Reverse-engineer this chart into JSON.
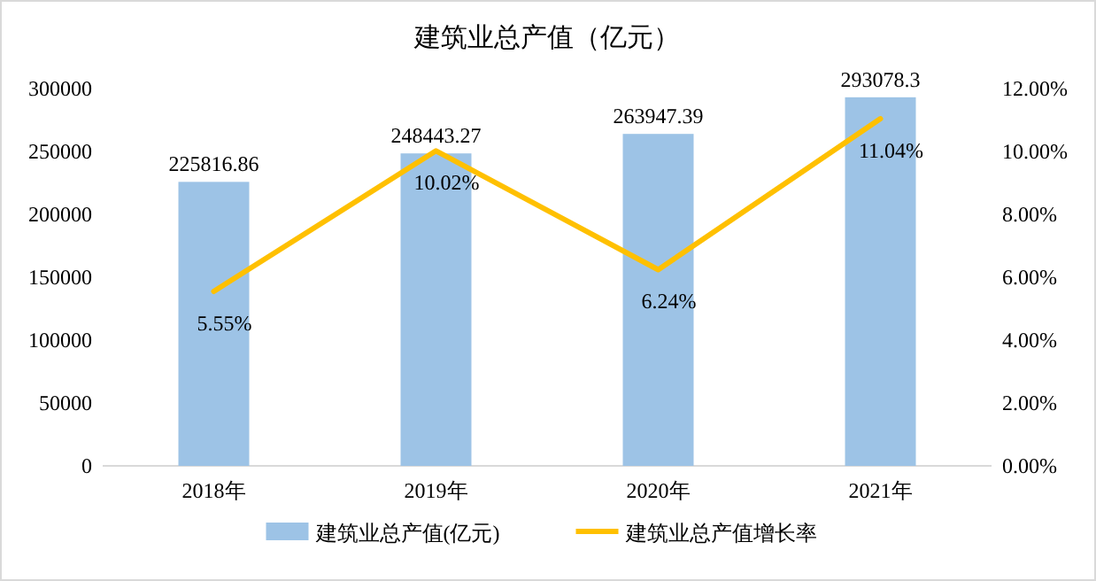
{
  "chart_data": {
    "type": "bar",
    "title": "建筑业总产值（亿元）",
    "categories": [
      "2018年",
      "2019年",
      "2020年",
      "2021年"
    ],
    "series": [
      {
        "name": "建筑业总产值(亿元)",
        "color": "#9dc3e6",
        "values": [
          225816.86,
          248443.27,
          263947.39,
          293078.3
        ],
        "value_labels": [
          "225816.86",
          "248443.27",
          "263947.39",
          "293078.3"
        ]
      },
      {
        "name": "建筑业总产值增长率",
        "type": "line",
        "axis": "y2",
        "color": "#ffc000",
        "values": [
          5.55,
          10.02,
          6.24,
          11.04
        ],
        "value_labels": [
          "5.55%",
          "10.02%",
          "6.24%",
          "11.04%"
        ]
      }
    ],
    "ylim": [
      0,
      300000
    ],
    "yticks": [
      0,
      50000,
      100000,
      150000,
      200000,
      250000,
      300000
    ],
    "y2lim": [
      0,
      12
    ],
    "y2ticks": [
      {
        "value": 0,
        "label": "0.00%"
      },
      {
        "value": 2,
        "label": "2.00%"
      },
      {
        "value": 4,
        "label": "4.00%"
      },
      {
        "value": 6,
        "label": "6.00%"
      },
      {
        "value": 8,
        "label": "8.00%"
      },
      {
        "value": 10,
        "label": "10.00%"
      },
      {
        "value": 12,
        "label": "12.00%"
      }
    ],
    "legend": "bottom"
  }
}
